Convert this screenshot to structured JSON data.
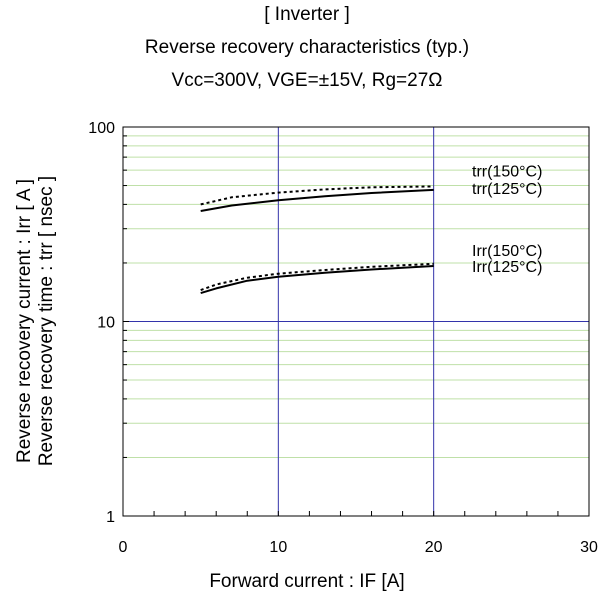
{
  "chart_data": {
    "type": "line",
    "title_lines": [
      "[ Inverter ]",
      "Reverse recovery characteristics  (typ.)",
      "Vcc=300V,  VGE=±15V,  Rg=27Ω"
    ],
    "xlabel": "Forward current : IF [A]",
    "ylabels": [
      "Reverse recovery current : Irr  [ A ]",
      "Reverse recovery time  :  trr  [ nsec ]"
    ],
    "x_scale": "linear",
    "y_scale": "log",
    "xlim": [
      0,
      30
    ],
    "ylim": [
      1,
      100
    ],
    "x_ticks": [
      0,
      10,
      20,
      30
    ],
    "x_tick_labels": [
      "0",
      "10",
      "20",
      "30"
    ],
    "y_ticks": [
      1,
      10,
      100
    ],
    "y_tick_labels": [
      "1",
      "10",
      "100"
    ],
    "grid": true,
    "series": [
      {
        "name": "trr(150°C)",
        "style": "dotted",
        "color": "#000000",
        "x": [
          5,
          7,
          10,
          13,
          16,
          20
        ],
        "y": [
          40,
          43.5,
          46,
          47.8,
          49,
          49.5
        ]
      },
      {
        "name": "trr(125°C)",
        "style": "solid",
        "color": "#000000",
        "x": [
          5,
          7,
          10,
          13,
          16,
          20
        ],
        "y": [
          37,
          39.5,
          42,
          44,
          45.8,
          47.5
        ]
      },
      {
        "name": "Irr(150°C)",
        "style": "dotted",
        "color": "#000000",
        "x": [
          5,
          6,
          8,
          10,
          13,
          16,
          20
        ],
        "y": [
          14.5,
          15.5,
          16.8,
          17.6,
          18.4,
          19.1,
          19.8
        ]
      },
      {
        "name": "Irr(125°C)",
        "style": "solid",
        "color": "#000000",
        "x": [
          5,
          6,
          8,
          10,
          13,
          16,
          20
        ],
        "y": [
          14,
          14.8,
          16.2,
          17.0,
          17.8,
          18.5,
          19.3
        ]
      }
    ]
  }
}
